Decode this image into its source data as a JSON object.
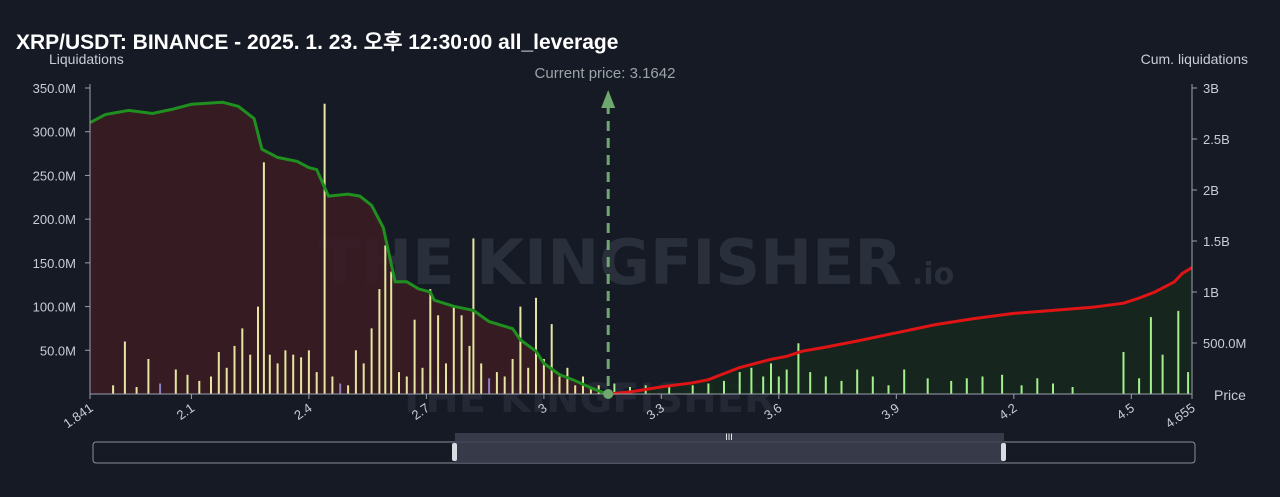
{
  "title": "XRP/USDT: BINANCE - 2025. 1. 23. 오후 12:30:00 all_leverage",
  "watermark": {
    "brand": "THE KINGFISHER",
    "suffix": ".io"
  },
  "current_price_label": "Current price: 3.1642",
  "colors": {
    "background": "#161a25",
    "left_fill": "#3a1c24",
    "right_fill": "#16281e",
    "cum_left_line": "#1f8f1f",
    "cum_right_line": "#e01414",
    "bar_yellow": "#e6e6a0",
    "bar_green": "#a4f08c",
    "bar_purple": "#8c7fbf",
    "price_marker": "#6fa86f"
  },
  "chart_data": {
    "type": "bar",
    "xlabel": "Price",
    "ylabel": "Liquidations",
    "y2label": "Cum. liquidations",
    "xlim": [
      1.841,
      4.655
    ],
    "ylim": [
      0,
      350000000
    ],
    "y2lim": [
      0,
      3000000000
    ],
    "x_ticks": [
      "1.841",
      "2.1",
      "2.4",
      "2.7",
      "3",
      "3.3",
      "3.6",
      "3.9",
      "4.2",
      "4.5",
      "4.655"
    ],
    "x_tick_values": [
      1.841,
      2.1,
      2.4,
      2.7,
      3.0,
      3.3,
      3.6,
      3.9,
      4.2,
      4.5,
      4.655
    ],
    "y_ticks": [
      "350.0M",
      "300.0M",
      "250.0M",
      "200.0M",
      "150.0M",
      "100.0M",
      "50.0M"
    ],
    "y_tick_values": [
      350000000,
      300000000,
      250000000,
      200000000,
      150000000,
      100000000,
      50000000
    ],
    "y2_ticks": [
      "3B",
      "2.5B",
      "2B",
      "1.5B",
      "1B",
      "500.0M"
    ],
    "y2_tick_values": [
      3000000000,
      2500000000,
      2000000000,
      1500000000,
      1000000000,
      500000000
    ],
    "current_price": 3.1642,
    "liquidation_bars": [
      {
        "x": 1.9,
        "y": 10000000,
        "c": "y"
      },
      {
        "x": 1.93,
        "y": 60000000,
        "c": "y"
      },
      {
        "x": 1.96,
        "y": 8000000,
        "c": "y"
      },
      {
        "x": 1.99,
        "y": 40000000,
        "c": "y"
      },
      {
        "x": 2.02,
        "y": 12000000,
        "c": "p"
      },
      {
        "x": 2.06,
        "y": 28000000,
        "c": "y"
      },
      {
        "x": 2.09,
        "y": 22000000,
        "c": "y"
      },
      {
        "x": 2.12,
        "y": 15000000,
        "c": "y"
      },
      {
        "x": 2.15,
        "y": 20000000,
        "c": "y"
      },
      {
        "x": 2.17,
        "y": 48000000,
        "c": "y"
      },
      {
        "x": 2.19,
        "y": 30000000,
        "c": "y"
      },
      {
        "x": 2.21,
        "y": 55000000,
        "c": "y"
      },
      {
        "x": 2.23,
        "y": 75000000,
        "c": "y"
      },
      {
        "x": 2.25,
        "y": 45000000,
        "c": "y"
      },
      {
        "x": 2.27,
        "y": 100000000,
        "c": "y"
      },
      {
        "x": 2.285,
        "y": 265000000,
        "c": "y"
      },
      {
        "x": 2.3,
        "y": 45000000,
        "c": "y"
      },
      {
        "x": 2.32,
        "y": 35000000,
        "c": "y"
      },
      {
        "x": 2.34,
        "y": 50000000,
        "c": "y"
      },
      {
        "x": 2.36,
        "y": 45000000,
        "c": "y"
      },
      {
        "x": 2.38,
        "y": 42000000,
        "c": "y"
      },
      {
        "x": 2.4,
        "y": 50000000,
        "c": "y"
      },
      {
        "x": 2.42,
        "y": 25000000,
        "c": "y"
      },
      {
        "x": 2.44,
        "y": 332000000,
        "c": "y"
      },
      {
        "x": 2.46,
        "y": 20000000,
        "c": "y"
      },
      {
        "x": 2.48,
        "y": 12000000,
        "c": "p"
      },
      {
        "x": 2.5,
        "y": 10000000,
        "c": "y"
      },
      {
        "x": 2.52,
        "y": 50000000,
        "c": "y"
      },
      {
        "x": 2.54,
        "y": 35000000,
        "c": "y"
      },
      {
        "x": 2.56,
        "y": 75000000,
        "c": "y"
      },
      {
        "x": 2.58,
        "y": 120000000,
        "c": "y"
      },
      {
        "x": 2.595,
        "y": 170000000,
        "c": "y"
      },
      {
        "x": 2.61,
        "y": 140000000,
        "c": "y"
      },
      {
        "x": 2.63,
        "y": 25000000,
        "c": "y"
      },
      {
        "x": 2.65,
        "y": 20000000,
        "c": "y"
      },
      {
        "x": 2.67,
        "y": 85000000,
        "c": "y"
      },
      {
        "x": 2.69,
        "y": 30000000,
        "c": "y"
      },
      {
        "x": 2.71,
        "y": 120000000,
        "c": "y"
      },
      {
        "x": 2.73,
        "y": 90000000,
        "c": "y"
      },
      {
        "x": 2.75,
        "y": 35000000,
        "c": "y"
      },
      {
        "x": 2.77,
        "y": 100000000,
        "c": "y"
      },
      {
        "x": 2.79,
        "y": 90000000,
        "c": "y"
      },
      {
        "x": 2.81,
        "y": 55000000,
        "c": "y"
      },
      {
        "x": 2.82,
        "y": 178000000,
        "c": "y"
      },
      {
        "x": 2.84,
        "y": 35000000,
        "c": "y"
      },
      {
        "x": 2.86,
        "y": 18000000,
        "c": "p"
      },
      {
        "x": 2.88,
        "y": 25000000,
        "c": "y"
      },
      {
        "x": 2.9,
        "y": 20000000,
        "c": "y"
      },
      {
        "x": 2.92,
        "y": 40000000,
        "c": "y"
      },
      {
        "x": 2.94,
        "y": 100000000,
        "c": "y"
      },
      {
        "x": 2.96,
        "y": 30000000,
        "c": "y"
      },
      {
        "x": 2.98,
        "y": 110000000,
        "c": "y"
      },
      {
        "x": 3.0,
        "y": 40000000,
        "c": "y"
      },
      {
        "x": 3.02,
        "y": 80000000,
        "c": "y"
      },
      {
        "x": 3.04,
        "y": 20000000,
        "c": "y"
      },
      {
        "x": 3.06,
        "y": 30000000,
        "c": "y"
      },
      {
        "x": 3.08,
        "y": 10000000,
        "c": "y"
      },
      {
        "x": 3.1,
        "y": 20000000,
        "c": "y"
      },
      {
        "x": 3.12,
        "y": 8000000,
        "c": "y"
      },
      {
        "x": 3.14,
        "y": 10000000,
        "c": "y"
      },
      {
        "x": 3.18,
        "y": 12000000,
        "c": "g"
      },
      {
        "x": 3.22,
        "y": 8000000,
        "c": "g"
      },
      {
        "x": 3.26,
        "y": 10000000,
        "c": "g"
      },
      {
        "x": 3.32,
        "y": 8000000,
        "c": "g"
      },
      {
        "x": 3.38,
        "y": 10000000,
        "c": "g"
      },
      {
        "x": 3.42,
        "y": 12000000,
        "c": "g"
      },
      {
        "x": 3.46,
        "y": 15000000,
        "c": "g"
      },
      {
        "x": 3.5,
        "y": 25000000,
        "c": "g"
      },
      {
        "x": 3.53,
        "y": 30000000,
        "c": "g"
      },
      {
        "x": 3.56,
        "y": 20000000,
        "c": "g"
      },
      {
        "x": 3.58,
        "y": 35000000,
        "c": "g"
      },
      {
        "x": 3.6,
        "y": 20000000,
        "c": "g"
      },
      {
        "x": 3.62,
        "y": 28000000,
        "c": "g"
      },
      {
        "x": 3.65,
        "y": 58000000,
        "c": "g"
      },
      {
        "x": 3.68,
        "y": 25000000,
        "c": "g"
      },
      {
        "x": 3.72,
        "y": 20000000,
        "c": "g"
      },
      {
        "x": 3.76,
        "y": 15000000,
        "c": "g"
      },
      {
        "x": 3.8,
        "y": 28000000,
        "c": "g"
      },
      {
        "x": 3.84,
        "y": 20000000,
        "c": "g"
      },
      {
        "x": 3.88,
        "y": 10000000,
        "c": "g"
      },
      {
        "x": 3.92,
        "y": 28000000,
        "c": "g"
      },
      {
        "x": 3.98,
        "y": 18000000,
        "c": "g"
      },
      {
        "x": 4.04,
        "y": 15000000,
        "c": "g"
      },
      {
        "x": 4.08,
        "y": 18000000,
        "c": "g"
      },
      {
        "x": 4.12,
        "y": 20000000,
        "c": "g"
      },
      {
        "x": 4.17,
        "y": 22000000,
        "c": "g"
      },
      {
        "x": 4.22,
        "y": 10000000,
        "c": "g"
      },
      {
        "x": 4.26,
        "y": 18000000,
        "c": "g"
      },
      {
        "x": 4.3,
        "y": 12000000,
        "c": "g"
      },
      {
        "x": 4.35,
        "y": 8000000,
        "c": "g"
      },
      {
        "x": 4.48,
        "y": 48000000,
        "c": "g"
      },
      {
        "x": 4.52,
        "y": 18000000,
        "c": "g"
      },
      {
        "x": 4.55,
        "y": 88000000,
        "c": "g"
      },
      {
        "x": 4.58,
        "y": 45000000,
        "c": "g"
      },
      {
        "x": 4.62,
        "y": 95000000,
        "c": "g"
      },
      {
        "x": 4.645,
        "y": 25000000,
        "c": "g"
      }
    ],
    "cum_left": [
      [
        1.841,
        2660000000
      ],
      [
        1.88,
        2740000000
      ],
      [
        1.94,
        2780000000
      ],
      [
        2.0,
        2750000000
      ],
      [
        2.05,
        2790000000
      ],
      [
        2.1,
        2840000000
      ],
      [
        2.18,
        2860000000
      ],
      [
        2.22,
        2820000000
      ],
      [
        2.26,
        2700000000
      ],
      [
        2.28,
        2400000000
      ],
      [
        2.32,
        2320000000
      ],
      [
        2.37,
        2280000000
      ],
      [
        2.4,
        2220000000
      ],
      [
        2.42,
        2200000000
      ],
      [
        2.45,
        1940000000
      ],
      [
        2.5,
        1960000000
      ],
      [
        2.53,
        1940000000
      ],
      [
        2.56,
        1850000000
      ],
      [
        2.59,
        1630000000
      ],
      [
        2.62,
        1100000000
      ],
      [
        2.65,
        1100000000
      ],
      [
        2.68,
        1030000000
      ],
      [
        2.71,
        1000000000
      ],
      [
        2.72,
        920000000
      ],
      [
        2.77,
        860000000
      ],
      [
        2.82,
        820000000
      ],
      [
        2.86,
        710000000
      ],
      [
        2.92,
        640000000
      ],
      [
        2.94,
        530000000
      ],
      [
        2.98,
        420000000
      ],
      [
        3.0,
        300000000
      ],
      [
        3.04,
        190000000
      ],
      [
        3.08,
        130000000
      ],
      [
        3.12,
        60000000
      ],
      [
        3.14,
        30000000
      ],
      [
        3.1642,
        0
      ]
    ],
    "cum_right": [
      [
        3.1642,
        0
      ],
      [
        3.22,
        20000000
      ],
      [
        3.3,
        70000000
      ],
      [
        3.38,
        110000000
      ],
      [
        3.42,
        140000000
      ],
      [
        3.46,
        200000000
      ],
      [
        3.5,
        260000000
      ],
      [
        3.54,
        300000000
      ],
      [
        3.58,
        340000000
      ],
      [
        3.62,
        370000000
      ],
      [
        3.66,
        420000000
      ],
      [
        3.72,
        460000000
      ],
      [
        3.8,
        520000000
      ],
      [
        3.9,
        600000000
      ],
      [
        4.0,
        680000000
      ],
      [
        4.1,
        740000000
      ],
      [
        4.2,
        790000000
      ],
      [
        4.3,
        820000000
      ],
      [
        4.4,
        850000000
      ],
      [
        4.48,
        890000000
      ],
      [
        4.52,
        940000000
      ],
      [
        4.56,
        1000000000
      ],
      [
        4.59,
        1060000000
      ],
      [
        4.61,
        1100000000
      ],
      [
        4.63,
        1180000000
      ],
      [
        4.655,
        1240000000
      ]
    ]
  }
}
